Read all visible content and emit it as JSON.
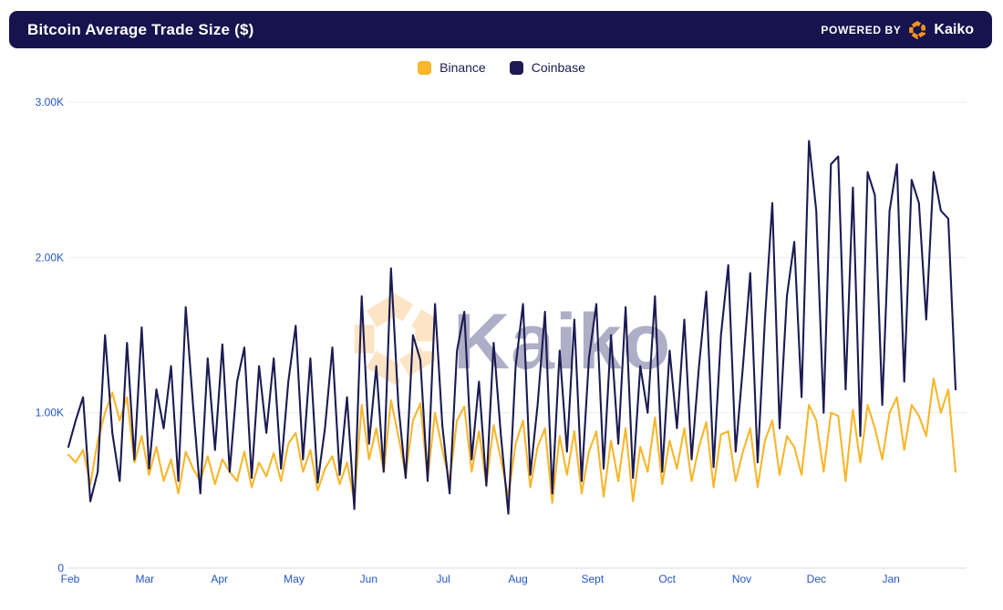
{
  "header": {
    "title": "Bitcoin Average Trade Size ($)",
    "powered_by": "POWERED BY",
    "brand": "Kaiko",
    "bg_color": "#16134e",
    "logo_color": "#f7941d"
  },
  "legend": {
    "items": [
      {
        "label": "Binance",
        "color": "#f8b62c"
      },
      {
        "label": "Coinbase",
        "color": "#1c1b52"
      }
    ]
  },
  "watermark": {
    "text": "Kaiko"
  },
  "chart_data": {
    "type": "line",
    "title": "Bitcoin Average Trade Size ($)",
    "unit": "$",
    "grid": true,
    "legend_position": "top-center",
    "ylim": [
      0,
      3000
    ],
    "y_ticks": [
      0,
      1000,
      2000,
      3000
    ],
    "y_tick_labels": [
      "0",
      "1.00K",
      "2.00K",
      "3.00K"
    ],
    "x_tick_labels": [
      "Feb",
      "Mar",
      "Apr",
      "May",
      "Jun",
      "Jul",
      "Aug",
      "Sept",
      "Oct",
      "Nov",
      "Dec",
      "Jan"
    ],
    "series": [
      {
        "name": "Binance",
        "color": "#f8b62c",
        "values": [
          730,
          680,
          760,
          540,
          820,
          1000,
          1130,
          950,
          1100,
          680,
          850,
          600,
          780,
          560,
          700,
          480,
          750,
          640,
          560,
          720,
          540,
          700,
          620,
          560,
          750,
          520,
          680,
          590,
          740,
          560,
          800,
          870,
          620,
          760,
          500,
          640,
          720,
          540,
          680,
          430,
          1050,
          700,
          900,
          620,
          1080,
          850,
          600,
          950,
          1060,
          580,
          1000,
          760,
          560,
          950,
          1040,
          620,
          880,
          540,
          920,
          700,
          460,
          800,
          950,
          520,
          780,
          900,
          420,
          850,
          600,
          880,
          480,
          750,
          880,
          460,
          820,
          560,
          900,
          430,
          780,
          620,
          970,
          540,
          820,
          640,
          900,
          560,
          780,
          940,
          520,
          860,
          880,
          560,
          750,
          900,
          520,
          820,
          950,
          600,
          850,
          780,
          600,
          1050,
          950,
          620,
          1000,
          980,
          560,
          1020,
          680,
          1050,
          900,
          700,
          1000,
          1100,
          760,
          1050,
          980,
          850,
          1220,
          1000,
          1150,
          620
        ]
      },
      {
        "name": "Coinbase",
        "color": "#1c1b52",
        "values": [
          780,
          950,
          1100,
          430,
          620,
          1500,
          870,
          560,
          1450,
          700,
          1550,
          640,
          1150,
          900,
          1300,
          560,
          1680,
          1050,
          480,
          1350,
          760,
          1440,
          620,
          1200,
          1420,
          580,
          1300,
          870,
          1350,
          640,
          1200,
          1560,
          700,
          1350,
          550,
          900,
          1420,
          600,
          1100,
          380,
          1750,
          800,
          1300,
          620,
          1930,
          1050,
          580,
          1500,
          1340,
          560,
          1700,
          920,
          480,
          1400,
          1650,
          700,
          1200,
          530,
          1450,
          850,
          350,
          1300,
          1700,
          600,
          1050,
          1650,
          480,
          1400,
          750,
          1600,
          560,
          1350,
          1700,
          640,
          1500,
          800,
          1680,
          580,
          1300,
          1000,
          1750,
          620,
          1400,
          900,
          1600,
          700,
          1300,
          1780,
          650,
          1500,
          1950,
          750,
          1300,
          1900,
          680,
          1600,
          2350,
          900,
          1750,
          2100,
          1100,
          2750,
          2300,
          1000,
          2600,
          2650,
          1150,
          2450,
          850,
          2550,
          2400,
          1050,
          2300,
          2600,
          1200,
          2500,
          2350,
          1600,
          2550,
          2300,
          2250,
          1150
        ]
      }
    ]
  }
}
